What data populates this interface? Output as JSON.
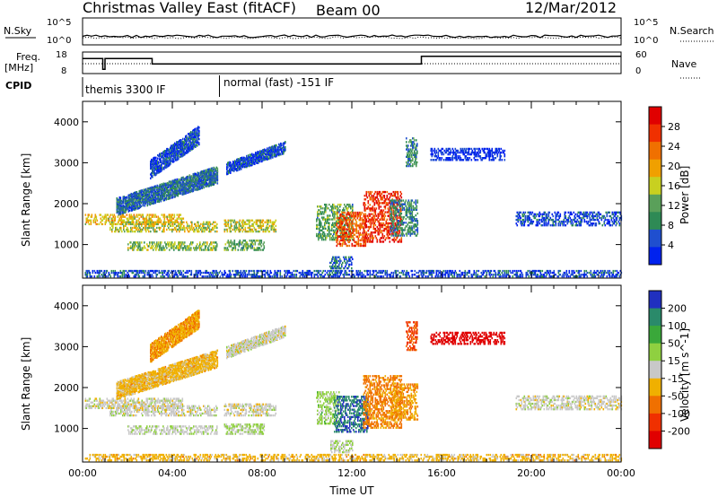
{
  "header": {
    "title": "Christmas Valley East (fitACF)",
    "beam": "Beam 00",
    "date": "12/Mar/2012"
  },
  "params": {
    "nsky_label": "N.Sky",
    "nsearch_label": "N.Search",
    "freq_label": "Freq.",
    "freq_unit": "[MHz]",
    "nave_label": "Nave",
    "cpid_label": "CPID",
    "nsky_ticks": [
      "10^5",
      "10^0"
    ],
    "nsearch_ticks": [
      "10^5",
      "10^0"
    ],
    "freq_ticks": [
      "18",
      "8"
    ],
    "nave_ticks": [
      "60",
      "0"
    ],
    "cpid_segments": [
      {
        "start_h": 0,
        "end_h": 6.1,
        "label": "themis 3300 IF"
      },
      {
        "start_h": 6.1,
        "end_h": 24,
        "label": "normal (fast) -151 IF"
      }
    ],
    "freq_steps": [
      {
        "start_h": 0,
        "end_h": 0.9,
        "mhz": 15
      },
      {
        "start_h": 0.9,
        "end_h": 1.0,
        "mhz": 10
      },
      {
        "start_h": 1.0,
        "end_h": 3.1,
        "mhz": 15
      },
      {
        "start_h": 3.1,
        "end_h": 6.1,
        "mhz": 12.5
      },
      {
        "start_h": 6.1,
        "end_h": 15.1,
        "mhz": 12.5
      },
      {
        "start_h": 15.1,
        "end_h": 24,
        "mhz": 16
      }
    ]
  },
  "chart_data": [
    {
      "type": "heatmap",
      "panel": "power",
      "ylabel": "Slant Range [km]",
      "xlabel": "",
      "ylim": [
        180,
        4500
      ],
      "xlim_hours": [
        0,
        24
      ],
      "y_ticks": [
        "1000",
        "2000",
        "3000",
        "4000"
      ],
      "colorbar_label": "Power [dB]",
      "colorbar_ticks": [
        "4",
        "8",
        "12",
        "16",
        "20",
        "24",
        "28"
      ],
      "colorscale": [
        "#0022ee",
        "#1f4fcf",
        "#2e8a55",
        "#5aa05a",
        "#c8d020",
        "#f0a000",
        "#f07000",
        "#f03000",
        "#e00000"
      ],
      "regions": [
        {
          "t0": 0.1,
          "t1": 4.5,
          "r0": 1480,
          "r1": 1720,
          "value": 18
        },
        {
          "t0": 1.2,
          "t1": 6.0,
          "r0": 1300,
          "r1": 1550,
          "value": 16
        },
        {
          "t0": 2.0,
          "t1": 6.0,
          "r0": 850,
          "r1": 1050,
          "value": 14
        },
        {
          "t0": 6.3,
          "t1": 8.6,
          "r0": 1300,
          "r1": 1600,
          "value": 16
        },
        {
          "t0": 6.3,
          "t1": 8.1,
          "r0": 850,
          "r1": 1100,
          "value": 12
        },
        {
          "t0": 1.5,
          "t1": 6.0,
          "r0": 1700,
          "r1": 2900,
          "value": 8,
          "slant": true
        },
        {
          "t0": 3.0,
          "t1": 5.2,
          "r0": 2600,
          "r1": 3900,
          "value": 6,
          "slant": true
        },
        {
          "t0": 6.4,
          "t1": 9.0,
          "r0": 2700,
          "r1": 3500,
          "value": 6,
          "slant": true
        },
        {
          "t0": 10.4,
          "t1": 12.0,
          "r0": 1100,
          "r1": 2000,
          "value": 12
        },
        {
          "t0": 11.3,
          "t1": 12.6,
          "r0": 950,
          "r1": 1800,
          "value": 24
        },
        {
          "t0": 12.5,
          "t1": 14.2,
          "r0": 1050,
          "r1": 2300,
          "value": 26
        },
        {
          "t0": 13.7,
          "t1": 14.9,
          "r0": 1200,
          "r1": 2100,
          "value": 10
        },
        {
          "t0": 14.4,
          "t1": 14.9,
          "r0": 2900,
          "r1": 3600,
          "value": 10
        },
        {
          "t0": 15.5,
          "t1": 18.8,
          "r0": 3050,
          "r1": 3350,
          "value": 4
        },
        {
          "t0": 19.3,
          "t1": 24.0,
          "r0": 1450,
          "r1": 1800,
          "value": 6
        },
        {
          "t0": 0.1,
          "t1": 24.0,
          "r0": 200,
          "r1": 350,
          "value": 6
        },
        {
          "t0": 11.0,
          "t1": 12.0,
          "r0": 400,
          "r1": 700,
          "value": 8
        }
      ]
    },
    {
      "type": "heatmap",
      "panel": "velocity",
      "ylabel": "Slant Range [km]",
      "xlabel": "Time UT",
      "ylim": [
        180,
        4500
      ],
      "xlim_hours": [
        0,
        24
      ],
      "x_ticks": [
        "00:00",
        "04:00",
        "08:00",
        "12:00",
        "16:00",
        "20:00",
        "00:00"
      ],
      "y_ticks": [
        "1000",
        "2000",
        "3000",
        "4000"
      ],
      "colorbar_label": "Velocity [m s^-1]",
      "colorbar_ticks": [
        "200",
        "100",
        "50",
        "15",
        "-15",
        "-50",
        "-100",
        "-200"
      ],
      "colorscale": [
        "#2030c0",
        "#2a8a6a",
        "#3aa83a",
        "#8fd040",
        "#c8c8c8",
        "#f0b000",
        "#f07000",
        "#f03000",
        "#e00000"
      ],
      "regions": [
        {
          "t0": 0.1,
          "t1": 4.5,
          "r0": 1480,
          "r1": 1720,
          "value": 0
        },
        {
          "t0": 1.2,
          "t1": 6.0,
          "r0": 1300,
          "r1": 1550,
          "value": 0
        },
        {
          "t0": 2.0,
          "t1": 6.0,
          "r0": 850,
          "r1": 1050,
          "value": 10
        },
        {
          "t0": 6.3,
          "t1": 8.6,
          "r0": 1300,
          "r1": 1600,
          "value": 0
        },
        {
          "t0": 6.3,
          "t1": 8.1,
          "r0": 850,
          "r1": 1100,
          "value": 30
        },
        {
          "t0": 1.5,
          "t1": 6.0,
          "r0": 1700,
          "r1": 2900,
          "value": -40,
          "slant": true
        },
        {
          "t0": 3.0,
          "t1": 5.2,
          "r0": 2600,
          "r1": 3900,
          "value": -60,
          "slant": true
        },
        {
          "t0": 6.4,
          "t1": 9.0,
          "r0": 2700,
          "r1": 3500,
          "value": 0,
          "slant": true
        },
        {
          "t0": 10.4,
          "t1": 11.4,
          "r0": 1100,
          "r1": 1900,
          "value": 40
        },
        {
          "t0": 11.2,
          "t1": 12.7,
          "r0": 900,
          "r1": 1800,
          "value": 150
        },
        {
          "t0": 12.5,
          "t1": 14.2,
          "r0": 1000,
          "r1": 2300,
          "value": -80
        },
        {
          "t0": 13.7,
          "t1": 14.9,
          "r0": 1200,
          "r1": 2100,
          "value": -60
        },
        {
          "t0": 14.4,
          "t1": 14.9,
          "r0": 2900,
          "r1": 3600,
          "value": -120
        },
        {
          "t0": 15.5,
          "t1": 18.8,
          "r0": 3050,
          "r1": 3350,
          "value": -200
        },
        {
          "t0": 19.3,
          "t1": 24.0,
          "r0": 1450,
          "r1": 1800,
          "value": 0
        },
        {
          "t0": 0.1,
          "t1": 24.0,
          "r0": 200,
          "r1": 350,
          "value": -40
        },
        {
          "t0": 11.0,
          "t1": 12.0,
          "r0": 400,
          "r1": 700,
          "value": 20
        }
      ]
    }
  ]
}
